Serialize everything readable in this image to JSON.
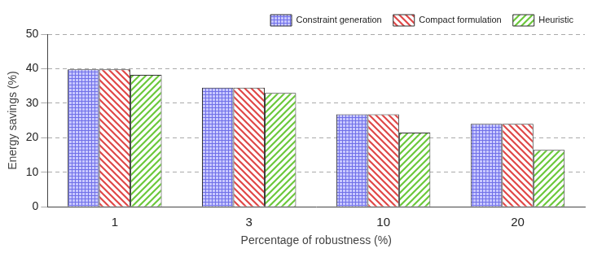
{
  "chart_data": {
    "type": "bar",
    "x_label": "Percentage of robustness (%)",
    "y_label": "Energy savings (%)",
    "categories": [
      "1",
      "3",
      "10",
      "20"
    ],
    "series": [
      {
        "name": "Constraint generation",
        "color": "#7070e8",
        "values": [
          39.8,
          34.5,
          26.8,
          24.0
        ]
      },
      {
        "name": "Compact formulation",
        "color": "#e04848",
        "values": [
          39.8,
          34.5,
          26.8,
          24.0
        ]
      },
      {
        "name": "Heuristic",
        "color": "#6cc83c",
        "values": [
          38.2,
          33.0,
          21.5,
          16.5
        ]
      }
    ],
    "ylim": [
      0,
      50
    ],
    "yticks": [
      0,
      10,
      20,
      30,
      40,
      50
    ],
    "grid": true,
    "legend": "top-right"
  }
}
